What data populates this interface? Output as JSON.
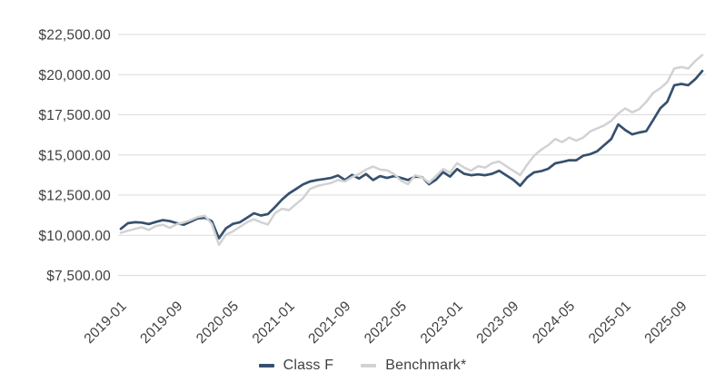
{
  "legend": {
    "items": [
      {
        "label": "Class F"
      },
      {
        "label": "Benchmark*"
      }
    ]
  },
  "colors": {
    "class_f_line": "#36506E",
    "benchmark_line": "#D2D2D3",
    "gridline": "#DBDBDB",
    "axis_text": "#3F3F3F",
    "background": "#FFFFFF"
  },
  "chart_data": {
    "type": "line",
    "grid": "horizontal",
    "legend_position": "bottom",
    "ylim": [
      7500,
      22500
    ],
    "x_tick_interval": 8,
    "x_tick_rotation_deg": 45,
    "y_ticks": [
      {
        "value": 22500,
        "label": "$22,500.00"
      },
      {
        "value": 20000,
        "label": "$20,000.00"
      },
      {
        "value": 17500,
        "label": "$17,500.00"
      },
      {
        "value": 15000,
        "label": "$15,000.00"
      },
      {
        "value": 12500,
        "label": "$12,500.00"
      },
      {
        "value": 10000,
        "label": "$10,000.00"
      },
      {
        "value": 7500,
        "label": "$7,500.00"
      }
    ],
    "x": [
      "2019-01",
      "2019-02",
      "2019-03",
      "2019-04",
      "2019-05",
      "2019-06",
      "2019-07",
      "2019-08",
      "2019-09",
      "2019-10",
      "2019-11",
      "2019-12",
      "2020-01",
      "2020-02",
      "2020-03",
      "2020-04",
      "2020-05",
      "2020-06",
      "2020-07",
      "2020-08",
      "2020-09",
      "2020-10",
      "2020-11",
      "2020-12",
      "2021-01",
      "2021-02",
      "2021-03",
      "2021-04",
      "2021-05",
      "2021-06",
      "2021-07",
      "2021-08",
      "2021-09",
      "2021-10",
      "2021-11",
      "2021-12",
      "2022-01",
      "2022-02",
      "2022-03",
      "2022-04",
      "2022-05",
      "2022-06",
      "2022-07",
      "2022-08",
      "2022-09",
      "2022-10",
      "2022-11",
      "2022-12",
      "2023-01",
      "2023-02",
      "2023-03",
      "2023-04",
      "2023-05",
      "2023-06",
      "2023-07",
      "2023-08",
      "2023-09",
      "2023-10",
      "2023-11",
      "2023-12",
      "2024-01",
      "2024-02",
      "2024-03",
      "2024-04",
      "2024-05",
      "2024-06",
      "2024-07",
      "2024-08",
      "2024-09",
      "2024-10",
      "2024-11",
      "2024-12",
      "2025-01",
      "2025-02",
      "2025-03",
      "2025-04",
      "2025-05",
      "2025-06",
      "2025-07",
      "2025-08",
      "2025-09",
      "2025-10",
      "2025-11",
      "2025-12"
    ],
    "series": [
      {
        "name": "Class F",
        "color": "#36506E",
        "values": [
          10400,
          10750,
          10810,
          10790,
          10700,
          10830,
          10940,
          10880,
          10750,
          10650,
          10850,
          11050,
          11090,
          10870,
          9810,
          10430,
          10710,
          10810,
          11090,
          11370,
          11230,
          11320,
          11750,
          12220,
          12600,
          12880,
          13160,
          13350,
          13440,
          13500,
          13570,
          13720,
          13440,
          13760,
          13530,
          13810,
          13440,
          13680,
          13570,
          13680,
          13570,
          13440,
          13650,
          13620,
          13180,
          13460,
          13930,
          13650,
          14120,
          13830,
          13740,
          13790,
          13740,
          13830,
          14020,
          13740,
          13460,
          13080,
          13600,
          13920,
          13990,
          14140,
          14480,
          14570,
          14670,
          14670,
          14950,
          15050,
          15230,
          15610,
          15990,
          16900,
          16550,
          16280,
          16400,
          16480,
          17180,
          17900,
          18300,
          19340,
          19420,
          19340,
          19720,
          20230
        ]
      },
      {
        "name": "Benchmark*",
        "color": "#D2D2D3",
        "values": [
          10150,
          10280,
          10390,
          10500,
          10330,
          10580,
          10650,
          10460,
          10690,
          10800,
          10950,
          11140,
          11210,
          10700,
          9400,
          10040,
          10240,
          10520,
          10810,
          10990,
          10810,
          10670,
          11370,
          11650,
          11560,
          11940,
          12310,
          12880,
          13060,
          13160,
          13250,
          13440,
          13350,
          13620,
          13810,
          14090,
          14280,
          14090,
          14050,
          13810,
          13400,
          13180,
          13740,
          13600,
          13270,
          13700,
          14120,
          13900,
          14490,
          14210,
          14020,
          14300,
          14210,
          14490,
          14590,
          14300,
          14020,
          13740,
          14390,
          14950,
          15330,
          15610,
          15990,
          15800,
          16080,
          15890,
          16080,
          16460,
          16650,
          16840,
          17120,
          17580,
          17900,
          17650,
          17850,
          18300,
          18870,
          19150,
          19530,
          20380,
          20470,
          20380,
          20850,
          21220
        ]
      }
    ]
  }
}
